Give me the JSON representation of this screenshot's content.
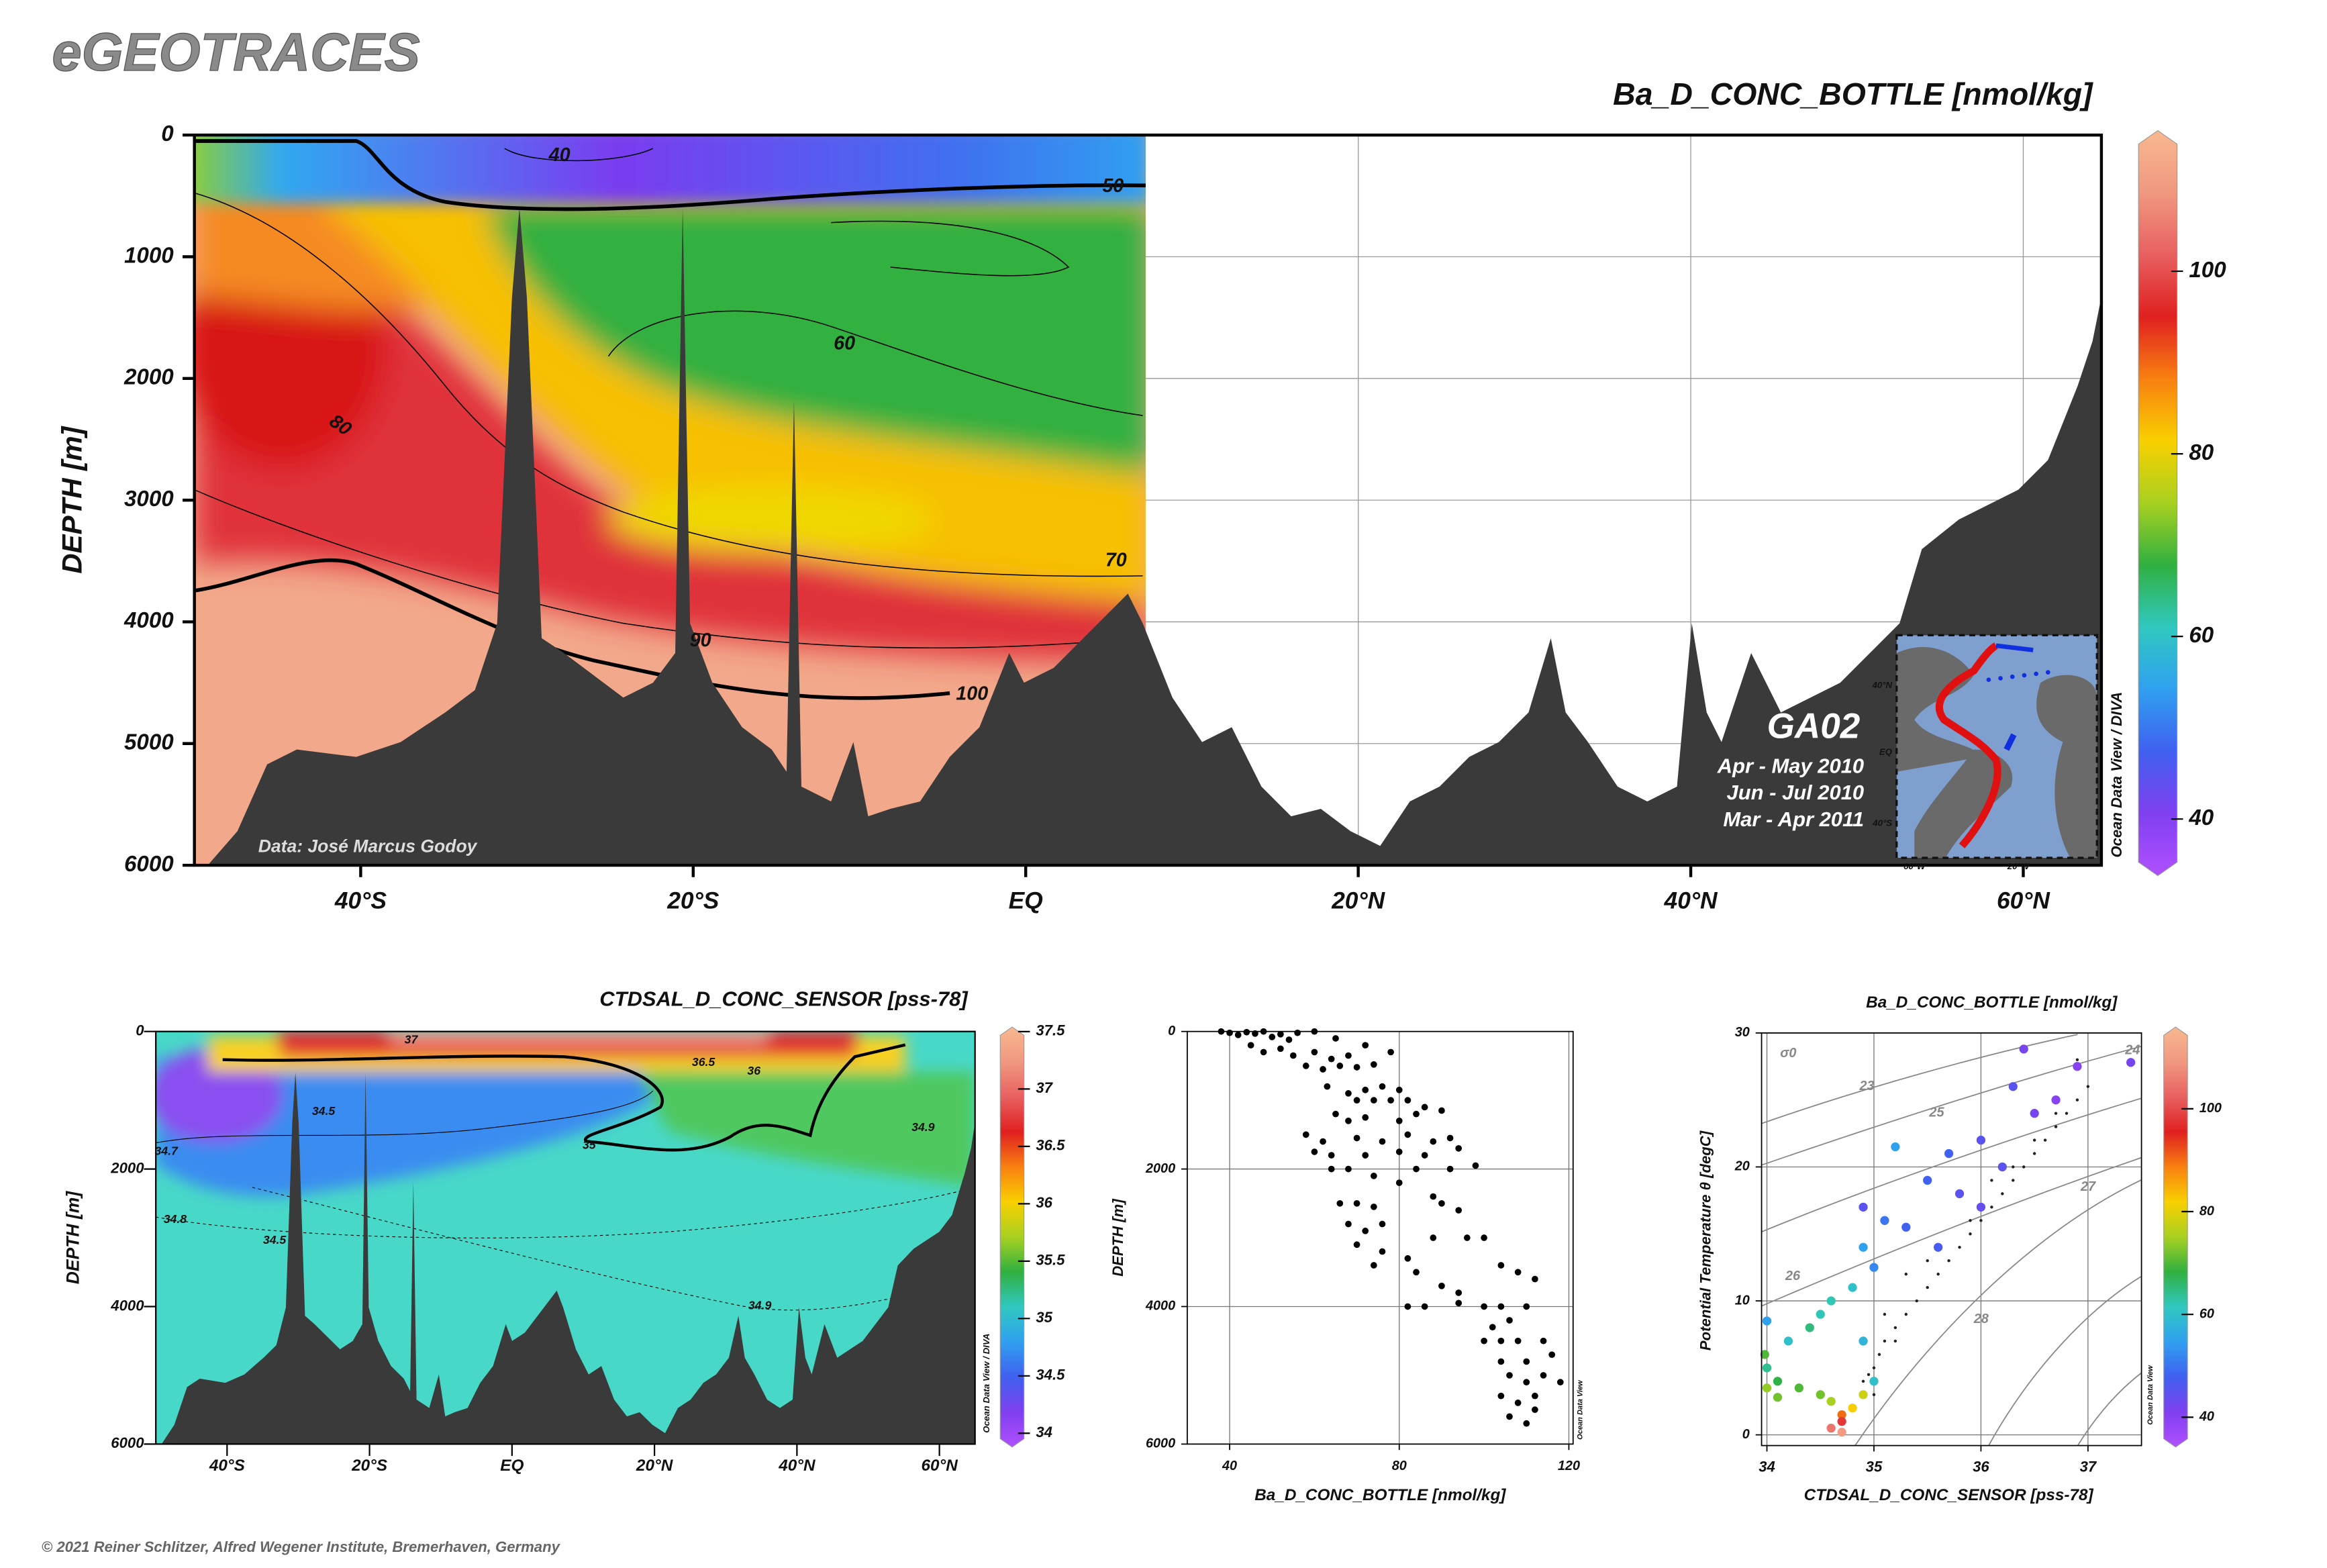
{
  "header": {
    "title": "eGEOTRACES"
  },
  "footer": {
    "copyright": "© 2021 Reiner Schlitzer, Alfred Wegener Institute, Bremerhaven, Germany"
  },
  "chart_data": [
    {
      "type": "section",
      "title": "Ba_D_CONC_BOTTLE [nmol/kg]",
      "ylabel": "DEPTH [m]",
      "xlim": [
        -50,
        64.7
      ],
      "xticks": [
        {
          "value": -40,
          "label": "40°S"
        },
        {
          "value": -20,
          "label": "20°S"
        },
        {
          "value": 0,
          "label": "EQ"
        },
        {
          "value": 20,
          "label": "20°N"
        },
        {
          "value": 40,
          "label": "40°N"
        },
        {
          "value": 60,
          "label": "60°N"
        }
      ],
      "ylim": [
        0,
        6000
      ],
      "y_inverted": true,
      "yticks": [
        0,
        1000,
        2000,
        3000,
        4000,
        5000,
        6000
      ],
      "grid": true,
      "colormap": [
        "#b050ff",
        "#8040f0",
        "#4060f0",
        "#30a0f0",
        "#30c8c0",
        "#30b040",
        "#a8d020",
        "#f8d000",
        "#f88010",
        "#e02020",
        "#e86060",
        "#f09880",
        "#f8b890"
      ],
      "clim": [
        33.8,
        115.4
      ],
      "cticks": [
        40,
        60,
        80,
        100
      ],
      "contour_labels": [
        40,
        50,
        60,
        70,
        80,
        90,
        100
      ],
      "annotations": {
        "credit": "Data: José Marcus Godoy",
        "watermark": "Ocean Data View / DIVA",
        "cruise": "GA02",
        "legs": [
          "Apr - May 2010",
          "Jun - Jul 2010",
          "Mar - Apr 2011"
        ],
        "map_labels": [
          "40°N",
          "EQ",
          "40°S",
          "60°W",
          "20°W"
        ]
      }
    },
    {
      "type": "section",
      "title": "CTDSAL_D_CONC_SENSOR [pss-78]",
      "ylabel": "DEPTH [m]",
      "xlim": [
        -50,
        65
      ],
      "xticks": [
        {
          "value": -40,
          "label": "40°S"
        },
        {
          "value": -20,
          "label": "20°S"
        },
        {
          "value": 0,
          "label": "EQ"
        },
        {
          "value": 20,
          "label": "20°N"
        },
        {
          "value": 40,
          "label": "40°N"
        },
        {
          "value": 60,
          "label": "60°N"
        }
      ],
      "ylim": [
        0,
        6000
      ],
      "y_inverted": true,
      "yticks": [
        0,
        2000,
        4000,
        6000
      ],
      "grid": true,
      "colormap": [
        "#b050ff",
        "#8040f0",
        "#4060f0",
        "#30a0f0",
        "#30c8c0",
        "#30b040",
        "#a8d020",
        "#f8d000",
        "#f88010",
        "#e02020",
        "#e86060",
        "#f09880",
        "#f8b890"
      ],
      "clim": [
        33.88,
        37.54
      ],
      "cticks": [
        34,
        34.5,
        35,
        35.5,
        36,
        36.5,
        37,
        37.5
      ],
      "contour_labels": [
        34.5,
        34.7,
        34.8,
        34.9,
        35,
        36,
        36.5,
        37,
        34.9,
        34.5
      ],
      "annotations": {
        "watermark": "Ocean Data View / DIVA"
      }
    },
    {
      "type": "scatter",
      "xlabel": "Ba_D_CONC_BOTTLE [nmol/kg]",
      "ylabel": "DEPTH [m]",
      "xlim": [
        30,
        121
      ],
      "xticks": [
        40,
        80,
        120
      ],
      "ylim": [
        0,
        6000
      ],
      "y_inverted": true,
      "yticks": [
        0,
        2000,
        4000,
        6000
      ],
      "grid": true,
      "series": [
        {
          "color": "#000000",
          "x": [
            38,
            40,
            42,
            44,
            46,
            48,
            50,
            52,
            54,
            56,
            60,
            65,
            45,
            48,
            52,
            55,
            60,
            64,
            68,
            72,
            58,
            62,
            66,
            70,
            74,
            78,
            63,
            68,
            72,
            76,
            80,
            70,
            74,
            78,
            82,
            86,
            65,
            68,
            72,
            80,
            84,
            90,
            58,
            62,
            70,
            76,
            82,
            88,
            92,
            60,
            64,
            72,
            80,
            86,
            94,
            64,
            68,
            74,
            84,
            92,
            98,
            80,
            88,
            66,
            70,
            74,
            90,
            94,
            68,
            72,
            76,
            88,
            96,
            100,
            70,
            76,
            82,
            74,
            84,
            104,
            108,
            90,
            94,
            112,
            82,
            86,
            94,
            100,
            104,
            110,
            102,
            106,
            100,
            104,
            108,
            114,
            104,
            110,
            116,
            106,
            110,
            114,
            118,
            104,
            108,
            112,
            106,
            110,
            112
          ],
          "values": [
            0,
            20,
            50,
            10,
            30,
            0,
            80,
            40,
            120,
            20,
            0,
            100,
            200,
            300,
            250,
            350,
            300,
            400,
            350,
            200,
            500,
            550,
            500,
            520,
            480,
            300,
            800,
            900,
            850,
            800,
            850,
            1000,
            1000,
            1000,
            1000,
            1100,
            1200,
            1300,
            1250,
            1300,
            1200,
            1150,
            1500,
            1600,
            1550,
            1600,
            1500,
            1600,
            1550,
            1750,
            1800,
            1800,
            1750,
            1800,
            1700,
            2000,
            2000,
            2100,
            2000,
            2000,
            1950,
            2200,
            2400,
            2500,
            2500,
            2550,
            2500,
            2600,
            2800,
            2900,
            2800,
            3000,
            3000,
            3000,
            3100,
            3200,
            3300,
            3400,
            3500,
            3400,
            3500,
            3700,
            3800,
            3600,
            4000,
            4000,
            3950,
            4000,
            4000,
            4000,
            4300,
            4200,
            4500,
            4500,
            4500,
            4500,
            4800,
            4800,
            4700,
            5000,
            5100,
            5000,
            5100,
            5300,
            5400,
            5300,
            5600,
            5700,
            5500
          ]
        }
      ],
      "annotations": {
        "watermark": "Ocean Data View"
      }
    },
    {
      "type": "scatter",
      "title": "Ba_D_CONC_BOTTLE [nmol/kg]",
      "xlabel": "CTDSAL_D_CONC_SENSOR [pss-78]",
      "ylabel": "Potential Temperature θ [degC]",
      "xlim": [
        33.95,
        37.5
      ],
      "xticks": [
        34,
        35,
        36,
        37
      ],
      "ylim": [
        -0.8,
        30
      ],
      "yticks": [
        0,
        10,
        20,
        30
      ],
      "grid": true,
      "colormap": [
        "#b050ff",
        "#8040f0",
        "#4060f0",
        "#30a0f0",
        "#30c8c0",
        "#30b040",
        "#a8d020",
        "#f8d000",
        "#f88010",
        "#e02020",
        "#e86060",
        "#f09880",
        "#f8b890"
      ],
      "clim": [
        34.2,
        115.9
      ],
      "cticks": [
        40,
        60,
        80,
        100
      ],
      "series": [
        {
          "color": "#222222",
          "x": [
            34.9,
            35.0,
            35.05,
            35.1,
            35.2,
            35.3,
            35.4,
            35.5,
            35.6,
            35.7,
            35.8,
            35.9,
            36.0,
            36.1,
            36.2,
            36.3,
            36.4,
            36.5,
            36.6,
            36.7,
            36.8,
            36.9,
            37.0,
            35.1,
            35.3,
            35.5,
            35.9,
            36.3,
            36.7,
            36.9,
            35.0,
            34.95,
            35.2,
            36.1,
            36.5
          ],
          "values": [
            4,
            5,
            6,
            7,
            8,
            9,
            10,
            11,
            12,
            13,
            14,
            15,
            16,
            17,
            18,
            19,
            20,
            21,
            22,
            23,
            24,
            25,
            26,
            9,
            12,
            13,
            16,
            20,
            24,
            28,
            3,
            4.5,
            7,
            19,
            22
          ]
        },
        {
          "x": [
            36.4,
            36.9,
            37.4,
            36.3,
            36.7,
            36.5,
            35.2,
            35.7,
            36.0,
            34.9,
            35.1,
            35.5,
            35.8,
            35.3,
            34.9,
            35.0,
            34.8,
            34.6,
            34.5,
            34.4,
            34.2,
            34.0,
            34.1,
            34.3,
            34.5,
            34.6,
            34.8,
            34.9,
            34.7,
            34.7,
            34.6,
            34.7,
            34.1,
            34.0,
            35.0,
            34.9,
            35.6,
            36.2,
            36.0,
            34.0,
            33.98
          ],
          "values": [
            28.8,
            27.5,
            27.8,
            26,
            25,
            24,
            21.5,
            21,
            22,
            17,
            16,
            19,
            18,
            15.5,
            14,
            12.5,
            11,
            10,
            9,
            8,
            7,
            5,
            4,
            3.5,
            3,
            2.5,
            2,
            3,
            1.5,
            1,
            0.5,
            0.2,
            2.8,
            3.5,
            4,
            7,
            14,
            20,
            17,
            8.5,
            6
          ],
          "c": [
            42,
            40,
            42,
            45,
            40,
            42,
            55,
            48,
            45,
            45,
            50,
            48,
            45,
            48,
            55,
            52,
            60,
            62,
            62,
            65,
            60,
            64,
            68,
            70,
            72,
            75,
            82,
            78,
            90,
            98,
            105,
            110,
            72,
            74,
            60,
            58,
            47,
            45,
            44,
            55,
            70
          ]
        }
      ],
      "contour_labels": [
        "σ0",
        23,
        24,
        25,
        26,
        27,
        28
      ],
      "annotations": {
        "watermark": "Ocean Data View"
      }
    }
  ]
}
